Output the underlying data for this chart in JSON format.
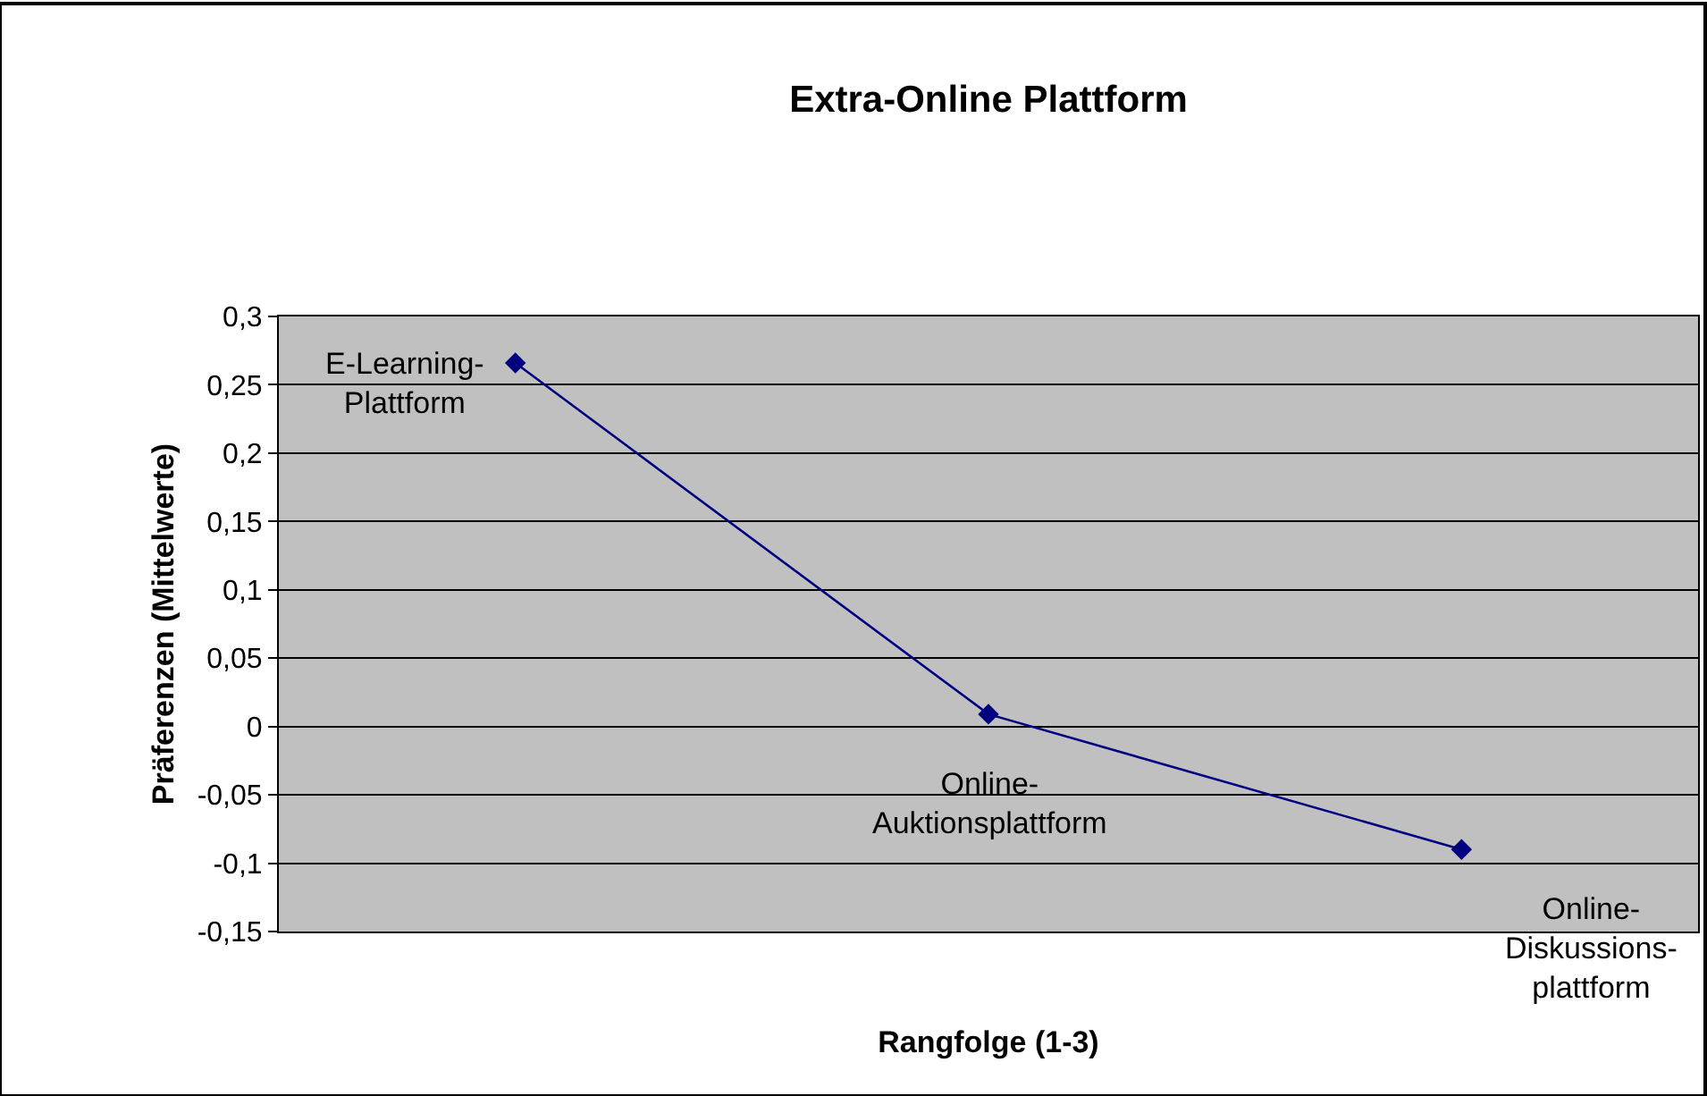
{
  "chart_data": {
    "type": "line",
    "title": "Extra-Online Plattform",
    "xlabel": "Rangfolge (1-3)",
    "ylabel": "Präferenzen (Mittelwerte)",
    "categories": [
      null,
      null,
      null
    ],
    "series": [
      {
        "color": "#000080",
        "values": [
          0.266,
          0.009,
          -0.09
        ]
      }
    ],
    "ylim": [
      -0.15,
      0.3
    ],
    "yticks": [
      {
        "value": -0.15,
        "label": "-0,15"
      },
      {
        "value": -0.1,
        "label": "-0,1"
      },
      {
        "value": -0.05,
        "label": "-0,05"
      },
      {
        "value": 0,
        "label": "0"
      },
      {
        "value": 0.05,
        "label": "0,05"
      },
      {
        "value": 0.1,
        "label": "0,1"
      },
      {
        "value": 0.15,
        "label": "0,15"
      },
      {
        "value": 0.2,
        "label": "0,2"
      },
      {
        "value": 0.25,
        "label": "0,25"
      },
      {
        "value": 0.3,
        "label": "0,3"
      }
    ],
    "grid": "y",
    "legend": false,
    "tick_labels": "y",
    "marker": "diamond",
    "line_style": "solid",
    "annotations": [
      "E-Learning-\nPlattform",
      "Online-\nAuktionsplattform",
      "Online-\nDiskussions-\nplattform"
    ]
  }
}
